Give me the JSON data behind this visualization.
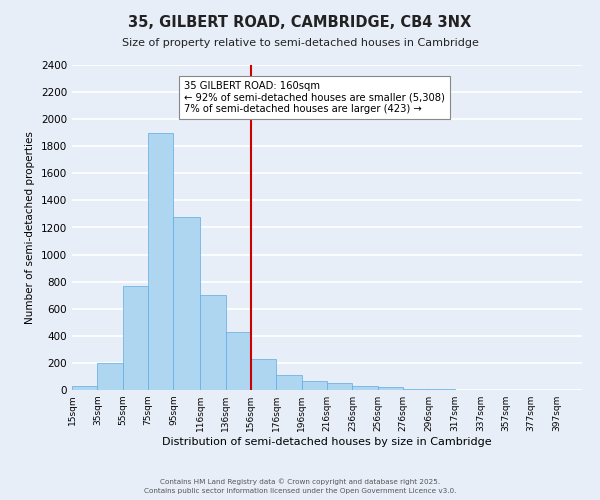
{
  "title": "35, GILBERT ROAD, CAMBRIDGE, CB4 3NX",
  "subtitle": "Size of property relative to semi-detached houses in Cambridge",
  "xlabel": "Distribution of semi-detached houses by size in Cambridge",
  "ylabel": "Number of semi-detached properties",
  "annotation_line1": "35 GILBERT ROAD: 160sqm",
  "annotation_line2": "← 92% of semi-detached houses are smaller (5,308)",
  "annotation_line3": "7% of semi-detached houses are larger (423) →",
  "bar_edges": [
    15,
    35,
    55,
    75,
    95,
    116,
    136,
    156,
    176,
    196,
    216,
    236,
    256,
    276,
    296,
    317,
    337,
    357,
    377,
    397,
    417
  ],
  "bar_heights": [
    30,
    200,
    770,
    1900,
    1280,
    700,
    430,
    230,
    110,
    70,
    55,
    30,
    20,
    10,
    5,
    3,
    2,
    1,
    0,
    0
  ],
  "bar_color": "#aed6f1",
  "bar_edge_color": "#5dade2",
  "vline_color": "#cc0000",
  "vline_x": 156,
  "ylim": [
    0,
    2400
  ],
  "yticks": [
    0,
    200,
    400,
    600,
    800,
    1000,
    1200,
    1400,
    1600,
    1800,
    2000,
    2200,
    2400
  ],
  "bg_color": "#e8eef8",
  "grid_color": "#ffffff",
  "footer1": "Contains HM Land Registry data © Crown copyright and database right 2025.",
  "footer2": "Contains public sector information licensed under the Open Government Licence v3.0.",
  "annotation_box_color": "#ffffff",
  "annotation_box_edge": "#888888"
}
